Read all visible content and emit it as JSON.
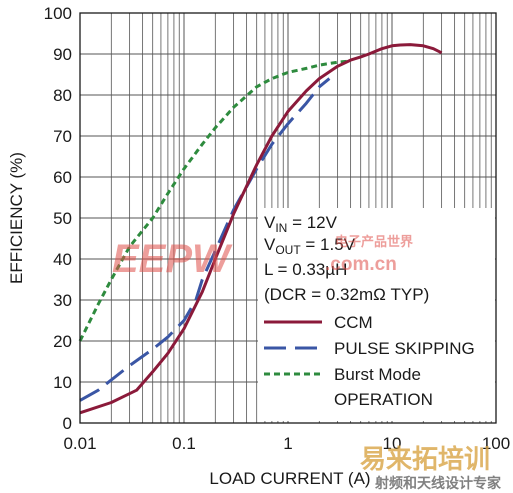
{
  "chart_data": {
    "type": "line",
    "title": "",
    "xlabel": "LOAD CURRENT (A)",
    "ylabel": "EFFICIENCY (%)",
    "xscale": "log",
    "xlim": [
      0.01,
      100
    ],
    "ylim": [
      0,
      100
    ],
    "grid": true,
    "x_tick_labels": [
      "0.01",
      "0.1",
      "1",
      "10",
      "100"
    ],
    "y_tick_labels": [
      "0",
      "10",
      "20",
      "30",
      "40",
      "50",
      "60",
      "70",
      "80",
      "90",
      "100"
    ],
    "legend_position": "lower-right",
    "conditions": [
      {
        "main": "V",
        "sub": "IN",
        "rest": " = 12V"
      },
      {
        "main": "V",
        "sub": "OUT",
        "rest": " = 1.5V"
      },
      {
        "main": "L = 0.33µH",
        "sub": "",
        "rest": ""
      },
      {
        "main": "(DCR = 0.32mΩ TYP)",
        "sub": "",
        "rest": ""
      }
    ],
    "legend": [
      {
        "label": "CCM",
        "style": "solid",
        "color": "#8b1a3a"
      },
      {
        "label": "PULSE SKIPPING",
        "style": "long-dash",
        "color": "#3a56a5"
      },
      {
        "label": "Burst Mode",
        "label2": "OPERATION",
        "style": "short-dash",
        "color": "#2e8b3e"
      }
    ],
    "series": [
      {
        "name": "CCM",
        "color": "#8b1a3a",
        "style": "solid",
        "x": [
          0.01,
          0.02,
          0.035,
          0.05,
          0.07,
          0.1,
          0.15,
          0.2,
          0.3,
          0.5,
          0.7,
          1.0,
          1.5,
          2.0,
          3.0,
          4.0,
          5.0,
          6.0,
          8.0,
          10.0,
          12.0,
          15.0,
          20.0,
          25.0,
          30.0
        ],
        "y": [
          2.5,
          5,
          8,
          12.5,
          17,
          23,
          32,
          40,
          51,
          63,
          70,
          76,
          81,
          84,
          87,
          88.5,
          89.3,
          90,
          91.3,
          92,
          92.2,
          92.3,
          92,
          91.3,
          90.3
        ]
      },
      {
        "name": "PULSE SKIPPING",
        "color": "#3a56a5",
        "style": "long-dash",
        "x": [
          0.01,
          0.015,
          0.02,
          0.03,
          0.05,
          0.07,
          0.1,
          0.13,
          0.15,
          0.2,
          0.3,
          0.5,
          0.7,
          1.0,
          1.5,
          2.0,
          2.5
        ],
        "y": [
          5.5,
          8,
          10.5,
          14,
          18,
          21,
          25,
          30,
          35,
          42,
          52,
          62,
          68,
          73,
          78,
          82,
          84
        ]
      },
      {
        "name": "Burst Mode OPERATION",
        "color": "#2e8b3e",
        "style": "short-dash",
        "x": [
          0.01,
          0.015,
          0.02,
          0.03,
          0.05,
          0.07,
          0.1,
          0.15,
          0.2,
          0.3,
          0.5,
          0.7,
          1.0,
          1.5,
          2.0,
          3.0,
          4.0
        ],
        "y": [
          20,
          29,
          35,
          43,
          50,
          56,
          62,
          68,
          72,
          77,
          82,
          84,
          85.5,
          86.5,
          87.3,
          88,
          88.3
        ]
      }
    ]
  },
  "watermarks": {
    "eepw_logo": "EEPW",
    "eepw_domain": ".com.cn",
    "eepw_chinese": "电子产品世界",
    "bottom_logo": "易来拓培训",
    "bottom_tagline": "射频和天线设计专家"
  }
}
